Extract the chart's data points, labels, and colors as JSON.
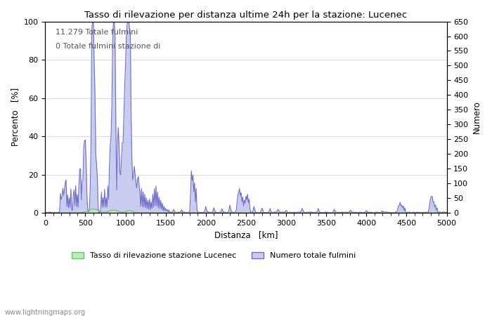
{
  "title": "Tasso di rilevazione per distanza ultime 24h per la stazione: Lucenec",
  "xlabel": "Distanza   [km]",
  "ylabel_left": "Percento   [%]",
  "ylabel_right": "Numero",
  "annotation_line1": "11.279 Totale fulmini",
  "annotation_line2": "0 Totale fulmini stazione di",
  "footer": "www.lightningmaps.org",
  "legend_green": "Tasso di rilevazione stazione Lucenec",
  "legend_blue": "Numero totale fulmini",
  "xlim": [
    0,
    5000
  ],
  "ylim_left": [
    0,
    100
  ],
  "ylim_right": [
    0,
    650
  ],
  "color_fill_blue": "#c8ccee",
  "color_line_blue": "#7070cc",
  "color_fill_green": "#b8eeb8",
  "color_line_green": "#70bb70",
  "background_color": "#ffffff",
  "grid_color": "#cccccc",
  "xticks": [
    0,
    500,
    1000,
    1500,
    2000,
    2500,
    3000,
    3500,
    4000,
    4500,
    5000
  ],
  "yticks_left": [
    0,
    20,
    40,
    60,
    80,
    100
  ],
  "yticks_right": [
    0,
    50,
    100,
    150,
    200,
    250,
    300,
    350,
    400,
    450,
    500,
    550,
    600,
    650
  ]
}
